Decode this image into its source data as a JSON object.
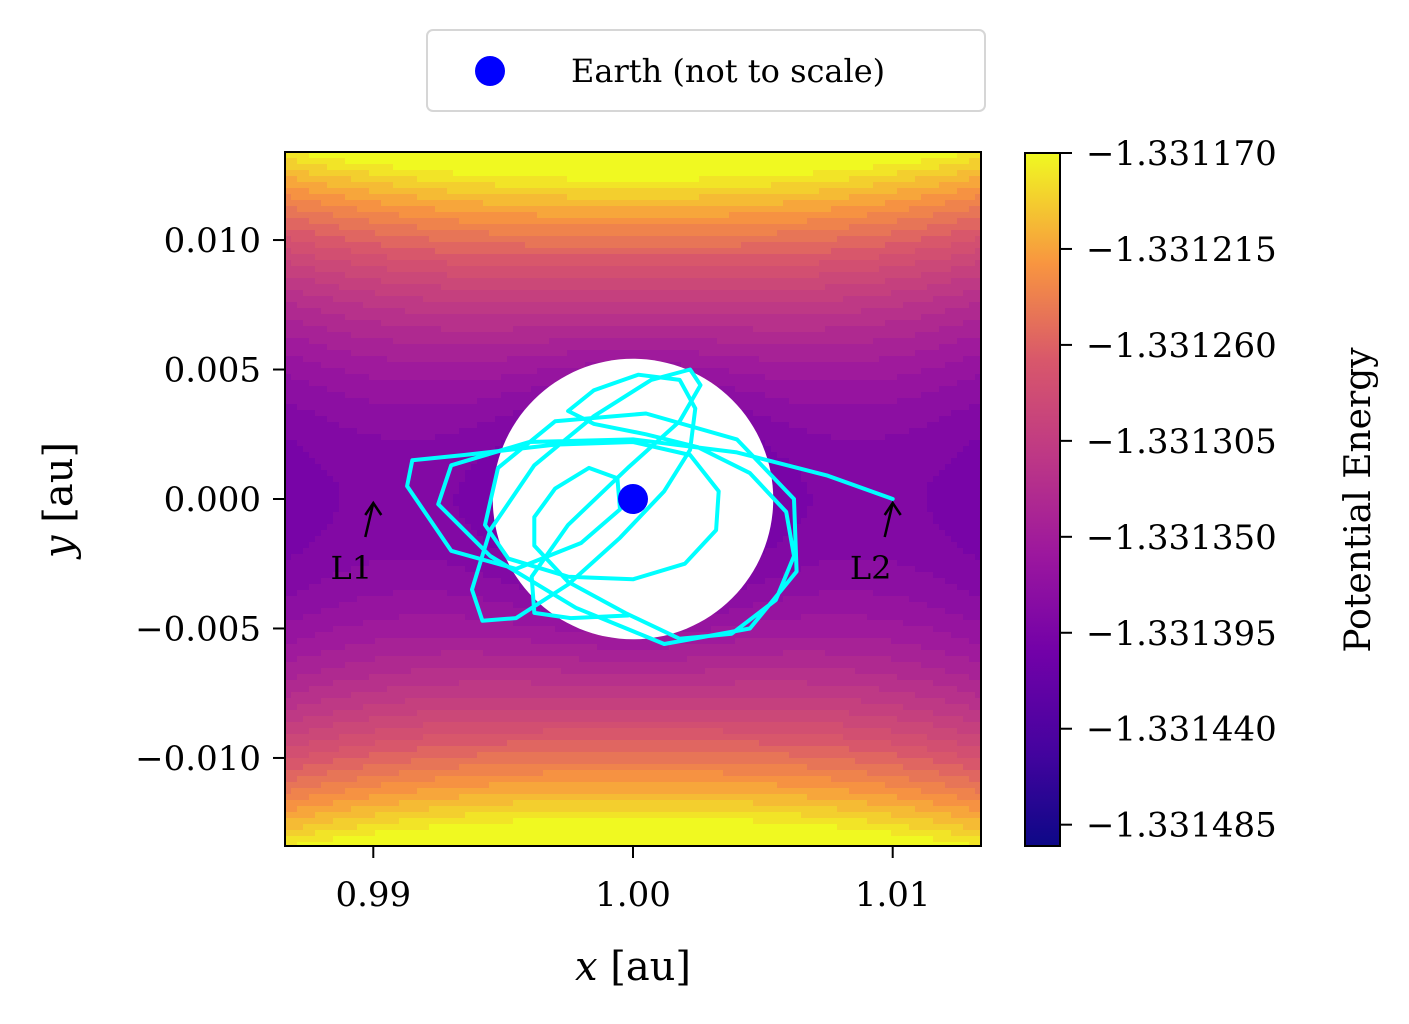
{
  "chart_data": {
    "type": "contour",
    "xlabel": "x [au]",
    "ylabel": "y [au]",
    "xlim": [
      0.9866,
      1.0134
    ],
    "ylim": [
      -0.0134,
      0.0134
    ],
    "x_ticks": [
      0.99,
      1.0,
      1.01
    ],
    "x_tick_labels": [
      "0.99",
      "1.00",
      "1.01"
    ],
    "y_ticks": [
      0.01,
      0.005,
      0.0,
      -0.005,
      -0.01
    ],
    "y_tick_labels": [
      "0.010",
      "0.005",
      "0.000",
      "−0.005",
      "−0.010"
    ],
    "grid": false,
    "legend": {
      "placement": "top-center, outside plot",
      "entries": [
        {
          "label": "Earth (not to scale)",
          "marker": "circle",
          "color": "#0000ff"
        }
      ]
    },
    "colormap": "plasma",
    "colorbar": {
      "label": "Potential Energy",
      "ticks": [
        -1.33117,
        -1.331215,
        -1.33126,
        -1.331305,
        -1.33135,
        -1.331395,
        -1.33144,
        -1.331485
      ],
      "tick_labels": [
        "−1.331170",
        "−1.331215",
        "−1.331260",
        "−1.331305",
        "−1.331350",
        "−1.331395",
        "−1.331440",
        "−1.331485"
      ],
      "range": [
        -1.331495,
        -1.33117
      ],
      "levels": 30
    },
    "earth": {
      "x": 1.0,
      "y": 0.0,
      "color": "#0000ff"
    },
    "masked_region_radius_au": 0.0054,
    "lagrange_points": [
      {
        "name": "L1",
        "x": 0.99,
        "y": 0.0
      },
      {
        "name": "L2",
        "x": 1.01,
        "y": 0.0
      }
    ],
    "trajectory": {
      "color": "#00ffff",
      "points": [
        [
          1.01,
          0.0
        ],
        [
          1.0075,
          0.0009
        ],
        [
          1.004,
          0.0018
        ],
        [
          1.0,
          0.0023
        ],
        [
          0.996,
          0.0022
        ],
        [
          0.993,
          0.0013
        ],
        [
          0.9925,
          -0.0002
        ],
        [
          0.9945,
          -0.0022
        ],
        [
          0.9978,
          -0.0042
        ],
        [
          1.0012,
          -0.0056
        ],
        [
          1.0045,
          -0.005
        ],
        [
          1.0063,
          -0.0028
        ],
        [
          1.0062,
          0.0
        ],
        [
          1.004,
          0.0023
        ],
        [
          1.0005,
          0.0033
        ],
        [
          0.997,
          0.003
        ],
        [
          0.9948,
          0.0012
        ],
        [
          0.9943,
          -0.001
        ],
        [
          0.9952,
          -0.0023
        ],
        [
          0.9975,
          -0.003
        ],
        [
          1.0,
          -0.0031
        ],
        [
          1.002,
          -0.0025
        ],
        [
          1.0032,
          -0.0012
        ],
        [
          1.0033,
          0.0003
        ],
        [
          1.0022,
          0.0017
        ],
        [
          1.0,
          0.0022
        ],
        [
          0.997,
          0.0021
        ],
        [
          0.9935,
          0.0017
        ],
        [
          0.9915,
          0.0015
        ],
        [
          0.9913,
          0.0005
        ],
        [
          0.993,
          -0.002
        ],
        [
          0.9955,
          -0.0027
        ],
        [
          0.998,
          -0.0017
        ],
        [
          0.9995,
          -0.0004
        ],
        [
          0.9994,
          0.0008
        ],
        [
          0.9983,
          0.0012
        ],
        [
          0.997,
          0.0004
        ],
        [
          0.9962,
          -0.0007
        ],
        [
          0.9962,
          -0.0018
        ],
        [
          0.9975,
          -0.0032
        ],
        [
          0.9997,
          -0.0044
        ],
        [
          1.0018,
          -0.0054
        ],
        [
          1.0038,
          -0.0052
        ],
        [
          1.0055,
          -0.0039
        ],
        [
          1.0062,
          -0.0022
        ],
        [
          1.0059,
          -0.0005
        ],
        [
          1.0045,
          0.001
        ],
        [
          1.0025,
          0.002
        ],
        [
          1.0005,
          0.0025
        ],
        [
          0.9985,
          0.0029
        ],
        [
          0.9975,
          0.0034
        ],
        [
          0.9985,
          0.0042
        ],
        [
          1.0002,
          0.0048
        ],
        [
          1.0018,
          0.0046
        ],
        [
          1.0024,
          0.0035
        ],
        [
          1.0022,
          0.0019
        ],
        [
          1.0012,
          0.0003
        ],
        [
          0.9995,
          -0.0015
        ],
        [
          0.9975,
          -0.0033
        ],
        [
          0.9955,
          -0.0046
        ],
        [
          0.9942,
          -0.0047
        ],
        [
          0.9938,
          -0.0035
        ],
        [
          0.9945,
          -0.0012
        ],
        [
          0.9962,
          0.0013
        ],
        [
          0.9985,
          0.0032
        ],
        [
          1.0007,
          0.0046
        ],
        [
          1.0022,
          0.005
        ],
        [
          1.0026,
          0.0044
        ],
        [
          1.0018,
          0.003
        ],
        [
          0.9998,
          0.0012
        ],
        [
          0.9975,
          -0.001
        ],
        [
          0.9961,
          -0.003
        ],
        [
          0.9962,
          -0.0044
        ],
        [
          0.9976,
          -0.0046
        ],
        [
          0.9998,
          -0.0045
        ]
      ]
    }
  }
}
